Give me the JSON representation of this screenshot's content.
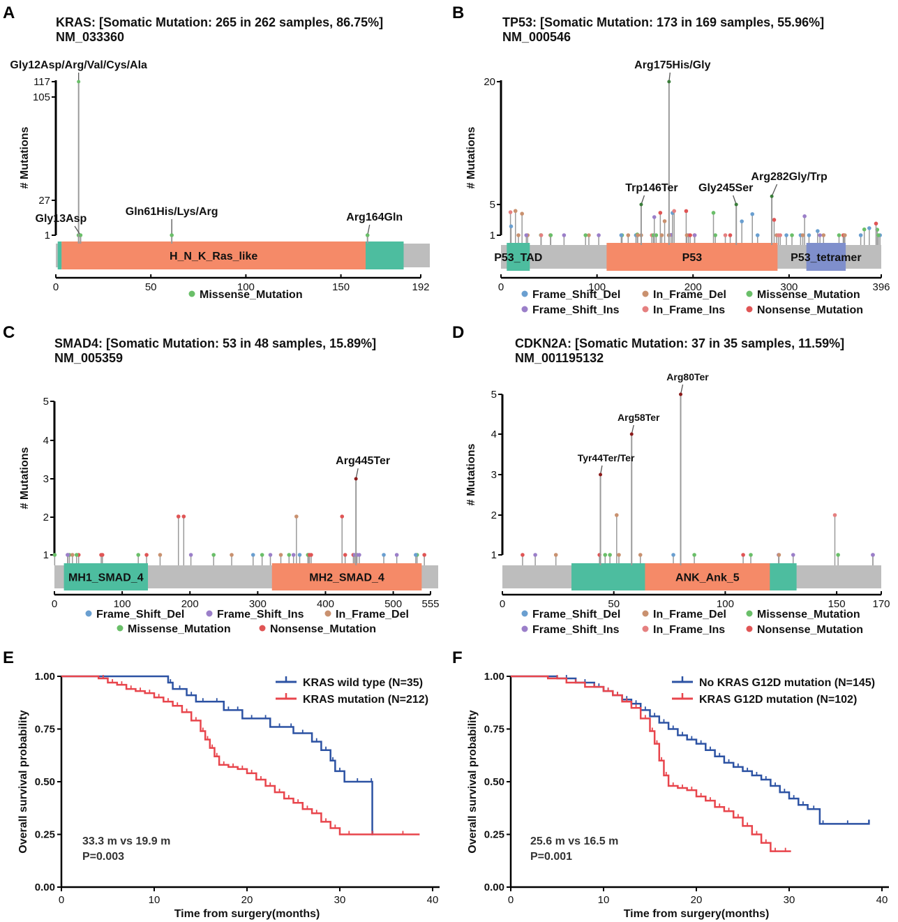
{
  "chart_data": [
    {
      "type": "lollipop",
      "panel": "A",
      "title": "KRAS: [Somatic Mutation: 265 in 262 samples, 86.75%]",
      "subtitle": "NM_033360",
      "ylabel": "# Mutations",
      "y_ticks": [
        "1",
        "27",
        "105",
        "117"
      ],
      "x_ticks": [
        "0",
        "50",
        "100",
        "150",
        "192"
      ],
      "x_range": [
        0,
        192
      ],
      "domains": [
        {
          "name": "H_N_K_Ras_like",
          "start": 3,
          "end": 163,
          "color": "#f58a68"
        },
        {
          "name": "",
          "start": 163,
          "end": 183,
          "color": "#4dbd9f"
        },
        {
          "name": "",
          "start": 1,
          "end": 3,
          "color": "#4dbd9f"
        }
      ],
      "labels": [
        {
          "text": "Gly12Asp/Arg/Val/Cys/Ala",
          "pos": 12,
          "count": 117
        },
        {
          "text": "Gly13Asp",
          "pos": 13,
          "count": 1
        },
        {
          "text": "Gln61His/Lys/Arg",
          "pos": 61,
          "count": 1
        },
        {
          "text": "Arg164Gln",
          "pos": 164,
          "count": 1
        }
      ],
      "legend": [
        {
          "label": "Missense_Mutation",
          "color": "#6abf69"
        }
      ]
    },
    {
      "type": "lollipop",
      "panel": "B",
      "title": "TP53: [Somatic Mutation: 173 in 169 samples, 55.96%]",
      "subtitle": "NM_000546",
      "ylabel": "# Mutations",
      "y_ticks": [
        "1",
        "5",
        "20"
      ],
      "x_ticks": [
        "0",
        "100",
        "200",
        "300",
        "396"
      ],
      "x_range": [
        0,
        396
      ],
      "domains": [
        {
          "name": "P53_TAD",
          "start": 6,
          "end": 30,
          "color": "#4dbd9f"
        },
        {
          "name": "P53",
          "start": 110,
          "end": 288,
          "color": "#f58a68"
        },
        {
          "name": "P53_tetramer",
          "start": 318,
          "end": 359,
          "color": "#7f8fcc"
        }
      ],
      "labels": [
        {
          "text": "Arg175His/Gly",
          "pos": 175,
          "count": 20
        },
        {
          "text": "Trp146Ter",
          "pos": 146,
          "count": 5
        },
        {
          "text": "Gly245Ser",
          "pos": 245,
          "count": 5
        },
        {
          "text": "Arg282Gly/Trp",
          "pos": 282,
          "count": 6
        }
      ],
      "legend": [
        {
          "label": "Frame_Shift_Del",
          "color": "#6a9fd0"
        },
        {
          "label": "In_Frame_Del",
          "color": "#c9916f"
        },
        {
          "label": "Missense_Mutation",
          "color": "#6abf69"
        },
        {
          "label": "Frame_Shift_Ins",
          "color": "#9b7fc9"
        },
        {
          "label": "In_Frame_Ins",
          "color": "#e58080"
        },
        {
          "label": "Nonsense_Mutation",
          "color": "#e05555"
        }
      ]
    },
    {
      "type": "lollipop",
      "panel": "C",
      "title": "SMAD4: [Somatic Mutation: 53 in 48 samples, 15.89%]",
      "subtitle": "NM_005359",
      "ylabel": "# Mutations",
      "y_ticks": [
        "1",
        "2",
        "3",
        "4",
        "5"
      ],
      "x_ticks": [
        "0",
        "100",
        "200",
        "300",
        "400",
        "500",
        "555"
      ],
      "x_range": [
        0,
        555
      ],
      "domains": [
        {
          "name": "MH1_SMAD_4",
          "start": 14,
          "end": 138,
          "color": "#4dbd9f"
        },
        {
          "name": "MH2_SMAD_4",
          "start": 321,
          "end": 542,
          "color": "#f58a68"
        }
      ],
      "labels": [
        {
          "text": "Arg445Ter",
          "pos": 445,
          "count": 3
        }
      ],
      "legend": [
        {
          "label": "Frame_Shift_Del",
          "color": "#6a9fd0"
        },
        {
          "label": "Frame_Shift_Ins",
          "color": "#9b7fc9"
        },
        {
          "label": "In_Frame_Del",
          "color": "#c9916f"
        },
        {
          "label": "Missense_Mutation",
          "color": "#6abf69"
        },
        {
          "label": "Nonsense_Mutation",
          "color": "#e05555"
        }
      ]
    },
    {
      "type": "lollipop",
      "panel": "D",
      "title": "CDKN2A: [Somatic Mutation: 37 in 35 samples, 11.59%]",
      "subtitle": "NM_001195132",
      "ylabel": "# Mutations",
      "y_ticks": [
        "1",
        "2",
        "3",
        "4",
        "5"
      ],
      "x_ticks": [
        "0",
        "50",
        "100",
        "150",
        "170"
      ],
      "x_range": [
        0,
        170
      ],
      "domains": [
        {
          "name": "",
          "start": 31,
          "end": 132,
          "color": "#4dbd9f"
        },
        {
          "name": "ANK_Ank_5",
          "start": 64,
          "end": 120,
          "color": "#f58a68"
        }
      ],
      "labels": [
        {
          "text": "Arg80Ter",
          "pos": 80,
          "count": 5
        },
        {
          "text": "Arg58Ter",
          "pos": 58,
          "count": 4
        },
        {
          "text": "Tyr44Ter/Ter",
          "pos": 44,
          "count": 3
        }
      ],
      "legend": [
        {
          "label": "Frame_Shift_Del",
          "color": "#6a9fd0"
        },
        {
          "label": "In_Frame_Del",
          "color": "#c9916f"
        },
        {
          "label": "Missense_Mutation",
          "color": "#6abf69"
        },
        {
          "label": "Frame_Shift_Ins",
          "color": "#9b7fc9"
        },
        {
          "label": "In_Frame_Ins",
          "color": "#e58080"
        },
        {
          "label": "Nonsense_Mutation",
          "color": "#e05555"
        }
      ]
    },
    {
      "type": "survival",
      "panel": "E",
      "ylabel": "Overall survival probability",
      "xlabel": "Time from surgery(months)",
      "y_ticks": [
        "0.00",
        "0.25",
        "0.50",
        "0.75",
        "1.00"
      ],
      "x_ticks": [
        "0",
        "10",
        "20",
        "30",
        "40"
      ],
      "x_range": [
        0,
        40
      ],
      "y_range": [
        0,
        1
      ],
      "annotation": [
        "33.3 m vs 19.9 m",
        "P=0.003"
      ],
      "series": [
        {
          "name": "KRAS wild type (N=35)",
          "color": "#2c52a3",
          "x": [
            0,
            11.5,
            12,
            13.5,
            14.5,
            16,
            17.5,
            18.5,
            19.5,
            21.5,
            22.5,
            24.5,
            25,
            27,
            28,
            29,
            29.5,
            30.5,
            33.3,
            33.5,
            33.6
          ],
          "y": [
            1.0,
            0.97,
            0.94,
            0.91,
            0.88,
            0.88,
            0.84,
            0.84,
            0.8,
            0.8,
            0.76,
            0.76,
            0.73,
            0.69,
            0.65,
            0.6,
            0.55,
            0.5,
            0.5,
            0.25,
            0.25
          ]
        },
        {
          "name": "KRAS mutation (N=212)",
          "color": "#e8454c",
          "x": [
            0,
            4,
            5,
            6,
            7,
            8,
            9,
            10,
            11,
            12,
            13,
            14,
            15,
            15.5,
            16,
            16.5,
            17,
            18,
            19,
            20,
            21,
            22,
            23,
            24,
            25,
            26,
            27,
            28,
            29,
            30,
            32,
            35,
            38.6
          ],
          "y": [
            1.0,
            0.99,
            0.97,
            0.96,
            0.94,
            0.93,
            0.92,
            0.9,
            0.88,
            0.86,
            0.83,
            0.79,
            0.74,
            0.7,
            0.66,
            0.62,
            0.58,
            0.57,
            0.56,
            0.54,
            0.51,
            0.48,
            0.45,
            0.42,
            0.4,
            0.37,
            0.35,
            0.31,
            0.28,
            0.25,
            0.25,
            0.25,
            0.25
          ]
        }
      ]
    },
    {
      "type": "survival",
      "panel": "F",
      "ylabel": "Overall survival probability",
      "xlabel": "Time from surgery(months)",
      "y_ticks": [
        "0.00",
        "0.25",
        "0.50",
        "0.75",
        "1.00"
      ],
      "x_ticks": [
        "0",
        "10",
        "20",
        "30",
        "40"
      ],
      "x_range": [
        0,
        40
      ],
      "y_range": [
        0,
        1
      ],
      "annotation": [
        "25.6 m vs 16.5 m",
        "P=0.001"
      ],
      "series": [
        {
          "name": "No KRAS G12D mutation (N=145)",
          "color": "#2c52a3",
          "x": [
            0,
            5,
            7,
            9,
            10,
            11,
            12,
            13,
            14,
            15,
            16,
            17,
            18,
            19,
            20,
            21,
            22,
            23,
            24,
            25,
            26,
            27,
            28,
            29,
            30,
            31,
            32,
            33.3,
            34,
            38.6
          ],
          "y": [
            1.0,
            0.99,
            0.97,
            0.95,
            0.93,
            0.91,
            0.89,
            0.87,
            0.84,
            0.81,
            0.78,
            0.75,
            0.72,
            0.7,
            0.68,
            0.65,
            0.62,
            0.59,
            0.57,
            0.55,
            0.53,
            0.51,
            0.48,
            0.45,
            0.42,
            0.39,
            0.37,
            0.3,
            0.3,
            0.32
          ]
        },
        {
          "name": "KRAS G12D mutation (N=102)",
          "color": "#e8454c",
          "x": [
            0,
            4,
            6,
            8,
            10,
            11,
            12,
            13,
            14,
            15,
            15.5,
            16,
            16.5,
            17,
            18,
            19,
            20,
            21,
            22,
            23,
            24,
            25,
            26,
            27,
            28,
            29,
            30.2
          ],
          "y": [
            1.0,
            0.99,
            0.97,
            0.95,
            0.93,
            0.91,
            0.88,
            0.85,
            0.8,
            0.74,
            0.68,
            0.6,
            0.53,
            0.48,
            0.47,
            0.46,
            0.43,
            0.41,
            0.38,
            0.36,
            0.33,
            0.29,
            0.25,
            0.21,
            0.17,
            0.17,
            0.17
          ]
        }
      ]
    }
  ]
}
